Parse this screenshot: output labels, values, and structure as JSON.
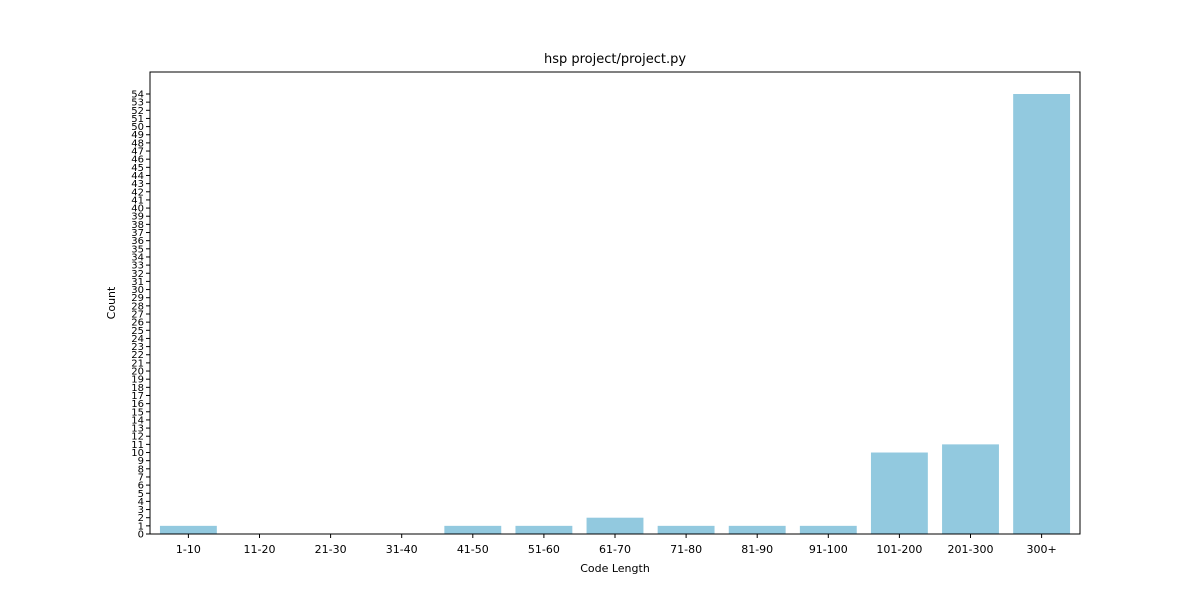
{
  "chart_data": {
    "type": "bar",
    "title": "hsp project/project.py",
    "xlabel": "Code Length",
    "ylabel": "Count",
    "categories": [
      "1-10",
      "11-20",
      "21-30",
      "31-40",
      "41-50",
      "51-60",
      "61-70",
      "71-80",
      "81-90",
      "91-100",
      "101-200",
      "201-300",
      "300+"
    ],
    "values": [
      1,
      0,
      0,
      0,
      1,
      1,
      2,
      1,
      1,
      1,
      10,
      11,
      54
    ],
    "ylim": [
      0,
      56.7
    ],
    "yticks": [
      0,
      1,
      2,
      3,
      4,
      5,
      6,
      7,
      8,
      9,
      10,
      11,
      12,
      13,
      14,
      15,
      16,
      17,
      18,
      19,
      20,
      21,
      22,
      23,
      24,
      25,
      26,
      27,
      28,
      29,
      30,
      31,
      32,
      33,
      34,
      35,
      36,
      37,
      38,
      39,
      40,
      41,
      42,
      43,
      44,
      45,
      46,
      47,
      48,
      49,
      50,
      51,
      52,
      53,
      54
    ],
    "bar_color": "#92c9df",
    "grid": false,
    "legend": false
  }
}
